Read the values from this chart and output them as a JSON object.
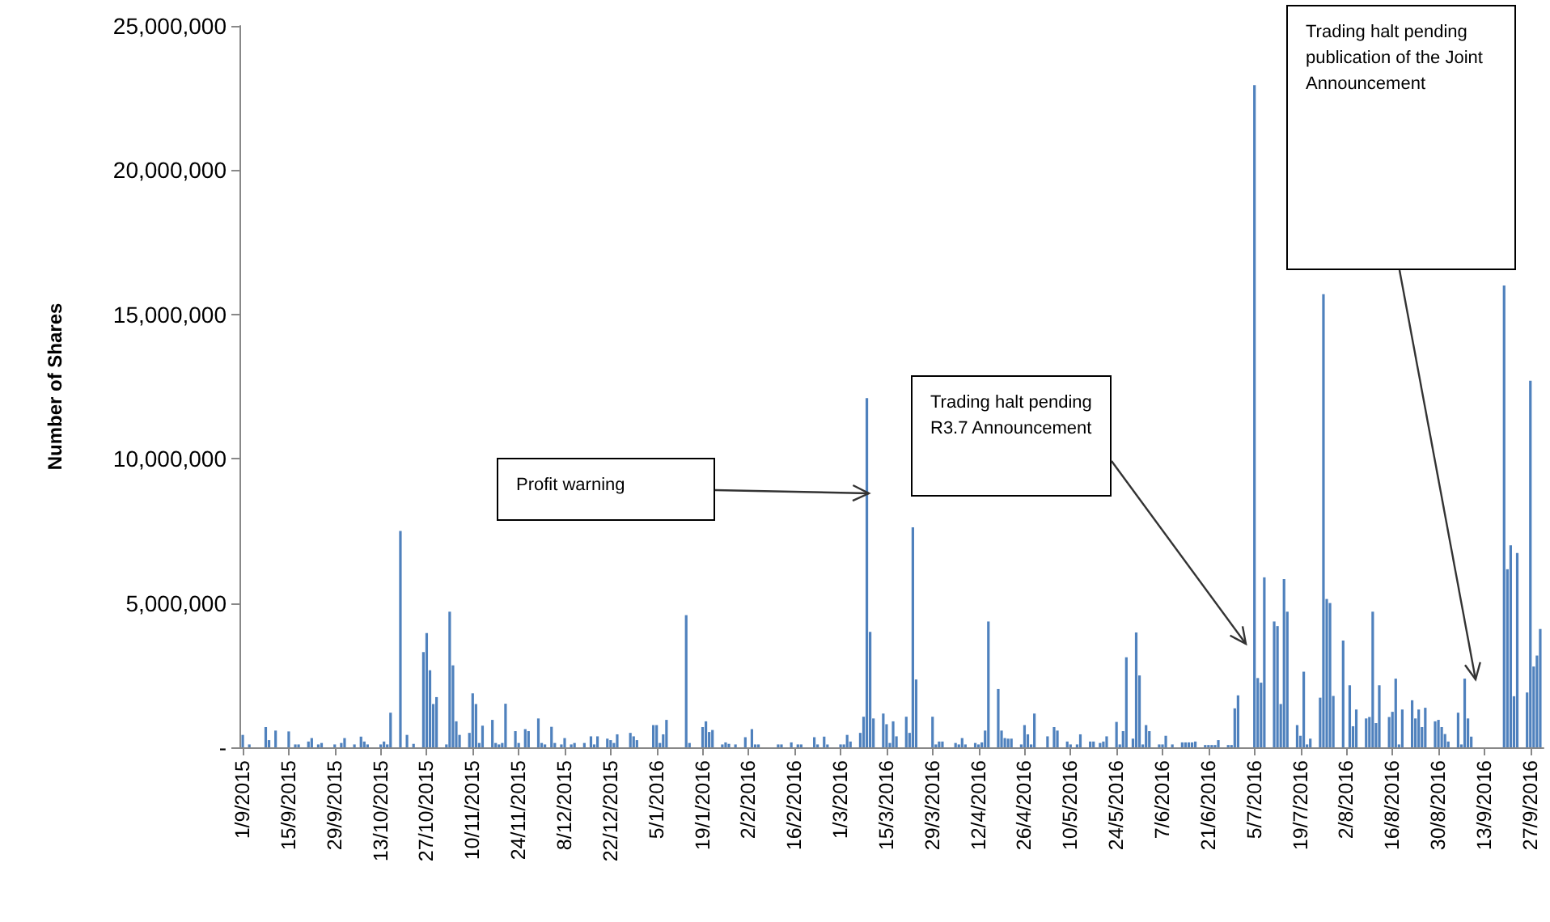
{
  "chart_data": {
    "type": "bar",
    "ylabel": "Number of Shares",
    "xlim": [
      "2015-08-31",
      "2016-10-01"
    ],
    "xticks": [
      {
        "value": "2015-09-01",
        "label": "1/9/2015"
      },
      {
        "value": "2015-09-15",
        "label": "15/9/2015"
      },
      {
        "value": "2015-09-29",
        "label": "29/9/2015"
      },
      {
        "value": "2015-10-13",
        "label": "13/10/2015"
      },
      {
        "value": "2015-10-27",
        "label": "27/10/2015"
      },
      {
        "value": "2015-11-10",
        "label": "10/11/2015"
      },
      {
        "value": "2015-11-24",
        "label": "24/11/2015"
      },
      {
        "value": "2015-12-08",
        "label": "8/12/2015"
      },
      {
        "value": "2015-12-22",
        "label": "22/12/2015"
      },
      {
        "value": "2016-01-05",
        "label": "5/1/2016"
      },
      {
        "value": "2016-01-19",
        "label": "19/1/2016"
      },
      {
        "value": "2016-02-02",
        "label": "2/2/2016"
      },
      {
        "value": "2016-02-16",
        "label": "16/2/2016"
      },
      {
        "value": "2016-03-01",
        "label": "1/3/2016"
      },
      {
        "value": "2016-03-15",
        "label": "15/3/2016"
      },
      {
        "value": "2016-03-29",
        "label": "29/3/2016"
      },
      {
        "value": "2016-04-12",
        "label": "12/4/2016"
      },
      {
        "value": "2016-04-26",
        "label": "26/4/2016"
      },
      {
        "value": "2016-05-10",
        "label": "10/5/2016"
      },
      {
        "value": "2016-05-24",
        "label": "24/5/2016"
      },
      {
        "value": "2016-06-07",
        "label": "7/6/2016"
      },
      {
        "value": "2016-06-21",
        "label": "21/6/2016"
      },
      {
        "value": "2016-07-05",
        "label": "5/7/2016"
      },
      {
        "value": "2016-07-19",
        "label": "19/7/2016"
      },
      {
        "value": "2016-08-02",
        "label": "2/8/2016"
      },
      {
        "value": "2016-08-16",
        "label": "16/8/2016"
      },
      {
        "value": "2016-08-30",
        "label": "30/8/2016"
      },
      {
        "value": "2016-09-13",
        "label": "13/9/2016"
      },
      {
        "value": "2016-09-27",
        "label": "27/9/2016"
      }
    ],
    "ylim": [
      0,
      25000000
    ],
    "yticks": [
      {
        "value": 0,
        "label": "-"
      },
      {
        "value": 5000000,
        "label": "5,000,000"
      },
      {
        "value": 10000000,
        "label": "10,000,000"
      },
      {
        "value": 15000000,
        "label": "15,000,000"
      },
      {
        "value": 20000000,
        "label": "20,000,000"
      },
      {
        "value": 25000000,
        "label": "25,000,000"
      }
    ],
    "annotations": [
      "Profit warning",
      "Trading halt pending R3.7 Announcement",
      "Trading halt pending publication of the Joint Announcement"
    ],
    "x": [
      "2015-09-01",
      "2015-09-03",
      "2015-09-08",
      "2015-09-09",
      "2015-09-11",
      "2015-09-15",
      "2015-09-17",
      "2015-09-18",
      "2015-09-21",
      "2015-09-22",
      "2015-09-24",
      "2015-09-25",
      "2015-09-29",
      "2015-10-01",
      "2015-10-02",
      "2015-10-05",
      "2015-10-07",
      "2015-10-08",
      "2015-10-09",
      "2015-10-13",
      "2015-10-14",
      "2015-10-15",
      "2015-10-16",
      "2015-10-19",
      "2015-10-21",
      "2015-10-23",
      "2015-10-26",
      "2015-10-27",
      "2015-10-28",
      "2015-10-29",
      "2015-10-30",
      "2015-11-02",
      "2015-11-03",
      "2015-11-04",
      "2015-11-05",
      "2015-11-06",
      "2015-11-09",
      "2015-11-10",
      "2015-11-11",
      "2015-11-12",
      "2015-11-13",
      "2015-11-16",
      "2015-11-17",
      "2015-11-18",
      "2015-11-19",
      "2015-11-20",
      "2015-11-23",
      "2015-11-24",
      "2015-11-26",
      "2015-11-27",
      "2015-11-30",
      "2015-12-01",
      "2015-12-02",
      "2015-12-04",
      "2015-12-05",
      "2015-12-07",
      "2015-12-08",
      "2015-12-10",
      "2015-12-11",
      "2015-12-14",
      "2015-12-16",
      "2015-12-17",
      "2015-12-18",
      "2015-12-21",
      "2015-12-22",
      "2015-12-23",
      "2015-12-24",
      "2015-12-28",
      "2015-12-29",
      "2015-12-30",
      "2016-01-04",
      "2016-01-05",
      "2016-01-06",
      "2016-01-07",
      "2016-01-08",
      "2016-01-14",
      "2016-01-15",
      "2016-01-19",
      "2016-01-20",
      "2016-01-21",
      "2016-01-22",
      "2016-01-25",
      "2016-01-26",
      "2016-01-27",
      "2016-01-29",
      "2016-02-01",
      "2016-02-03",
      "2016-02-04",
      "2016-02-05",
      "2016-02-11",
      "2016-02-12",
      "2016-02-15",
      "2016-02-17",
      "2016-02-18",
      "2016-02-22",
      "2016-02-23",
      "2016-02-25",
      "2016-02-26",
      "2016-03-01",
      "2016-03-02",
      "2016-03-03",
      "2016-03-04",
      "2016-03-07",
      "2016-03-08",
      "2016-03-09",
      "2016-03-10",
      "2016-03-11",
      "2016-03-14",
      "2016-03-15",
      "2016-03-16",
      "2016-03-17",
      "2016-03-18",
      "2016-03-21",
      "2016-03-22",
      "2016-03-23",
      "2016-03-24",
      "2016-03-29",
      "2016-03-30",
      "2016-03-31",
      "2016-04-01",
      "2016-04-05",
      "2016-04-06",
      "2016-04-07",
      "2016-04-08",
      "2016-04-11",
      "2016-04-12",
      "2016-04-13",
      "2016-04-14",
      "2016-04-15",
      "2016-04-18",
      "2016-04-19",
      "2016-04-20",
      "2016-04-21",
      "2016-04-22",
      "2016-04-25",
      "2016-04-26",
      "2016-04-27",
      "2016-04-28",
      "2016-04-29",
      "2016-05-03",
      "2016-05-05",
      "2016-05-06",
      "2016-05-09",
      "2016-05-10",
      "2016-05-12",
      "2016-05-13",
      "2016-05-16",
      "2016-05-17",
      "2016-05-19",
      "2016-05-20",
      "2016-05-21",
      "2016-05-24",
      "2016-05-25",
      "2016-05-26",
      "2016-05-27",
      "2016-05-29",
      "2016-05-30",
      "2016-05-31",
      "2016-06-01",
      "2016-06-02",
      "2016-06-03",
      "2016-06-06",
      "2016-06-07",
      "2016-06-08",
      "2016-06-10",
      "2016-06-13",
      "2016-06-14",
      "2016-06-15",
      "2016-06-16",
      "2016-06-17",
      "2016-06-20",
      "2016-06-21",
      "2016-06-22",
      "2016-06-23",
      "2016-06-24",
      "2016-06-27",
      "2016-06-28",
      "2016-06-29",
      "2016-06-30",
      "2016-07-05",
      "2016-07-06",
      "2016-07-07",
      "2016-07-08",
      "2016-07-11",
      "2016-07-12",
      "2016-07-13",
      "2016-07-14",
      "2016-07-15",
      "2016-07-18",
      "2016-07-19",
      "2016-07-20",
      "2016-07-21",
      "2016-07-22",
      "2016-07-25",
      "2016-07-26",
      "2016-07-27",
      "2016-07-28",
      "2016-07-29",
      "2016-08-01",
      "2016-08-03",
      "2016-08-04",
      "2016-08-05",
      "2016-08-08",
      "2016-08-09",
      "2016-08-10",
      "2016-08-11",
      "2016-08-12",
      "2016-08-15",
      "2016-08-16",
      "2016-08-17",
      "2016-08-18",
      "2016-08-19",
      "2016-08-22",
      "2016-08-23",
      "2016-08-24",
      "2016-08-25",
      "2016-08-26",
      "2016-08-29",
      "2016-08-30",
      "2016-08-31",
      "2016-09-01",
      "2016-09-02",
      "2016-09-05",
      "2016-09-06",
      "2016-09-07",
      "2016-09-08",
      "2016-09-09",
      "2016-09-19",
      "2016-09-20",
      "2016-09-21",
      "2016-09-22",
      "2016-09-23",
      "2016-09-26",
      "2016-09-27",
      "2016-09-28",
      "2016-09-29",
      "2016-09-30"
    ],
    "series": [
      {
        "color": "#4f81bd",
        "values": [
          430000,
          100000,
          700000,
          250000,
          580000,
          550000,
          100000,
          100000,
          200000,
          320000,
          100000,
          150000,
          100000,
          150000,
          320000,
          100000,
          370000,
          200000,
          100000,
          100000,
          200000,
          100000,
          1200000,
          7500000,
          430000,
          120000,
          3300000,
          3960000,
          2670000,
          1500000,
          1740000,
          100000,
          4700000,
          2840000,
          900000,
          430000,
          500000,
          1870000,
          1500000,
          150000,
          750000,
          950000,
          150000,
          100000,
          150000,
          1510000,
          560000,
          150000,
          630000,
          560000,
          1000000,
          150000,
          100000,
          710000,
          150000,
          100000,
          320000,
          100000,
          150000,
          150000,
          380000,
          100000,
          380000,
          300000,
          250000,
          150000,
          450000,
          500000,
          380000,
          250000,
          770000,
          770000,
          150000,
          450000,
          950000,
          4580000,
          150000,
          700000,
          900000,
          530000,
          600000,
          100000,
          170000,
          120000,
          100000,
          350000,
          630000,
          100000,
          100000,
          100000,
          100000,
          170000,
          100000,
          100000,
          350000,
          100000,
          370000,
          100000,
          100000,
          100000,
          430000,
          200000,
          500000,
          1060000,
          12100000,
          4000000,
          1000000,
          1170000,
          800000,
          150000,
          900000,
          380000,
          1060000,
          500000,
          7620000,
          2350000,
          1060000,
          100000,
          200000,
          200000,
          150000,
          100000,
          320000,
          100000,
          150000,
          100000,
          170000,
          580000,
          4360000,
          2020000,
          580000,
          320000,
          300000,
          300000,
          100000,
          770000,
          450000,
          100000,
          1170000,
          380000,
          700000,
          580000,
          200000,
          100000,
          100000,
          450000,
          200000,
          200000,
          150000,
          200000,
          380000,
          880000,
          100000,
          560000,
          3120000,
          300000,
          3980000,
          2490000,
          100000,
          770000,
          560000,
          100000,
          100000,
          400000,
          100000,
          170000,
          170000,
          170000,
          170000,
          200000,
          80000,
          80000,
          80000,
          80000,
          250000,
          80000,
          80000,
          1350000,
          1800000,
          22950000,
          2400000,
          2240000,
          5890000,
          4360000,
          4200000,
          1500000,
          5830000,
          4700000,
          770000,
          400000,
          2620000,
          100000,
          300000,
          1720000,
          15700000,
          5140000,
          5000000,
          1780000,
          3700000,
          2150000,
          730000,
          1310000,
          1000000,
          1050000,
          4700000,
          840000,
          2150000,
          1050000,
          1230000,
          2380000,
          100000,
          1310000,
          1630000,
          1000000,
          1310000,
          700000,
          1370000,
          900000,
          950000,
          700000,
          460000,
          200000,
          1200000,
          100000,
          2380000,
          1000000,
          370000,
          16000000,
          6170000,
          7000000,
          1770000,
          6730000,
          1900000,
          12700000,
          2800000,
          3180000,
          4100000
        ]
      }
    ]
  }
}
